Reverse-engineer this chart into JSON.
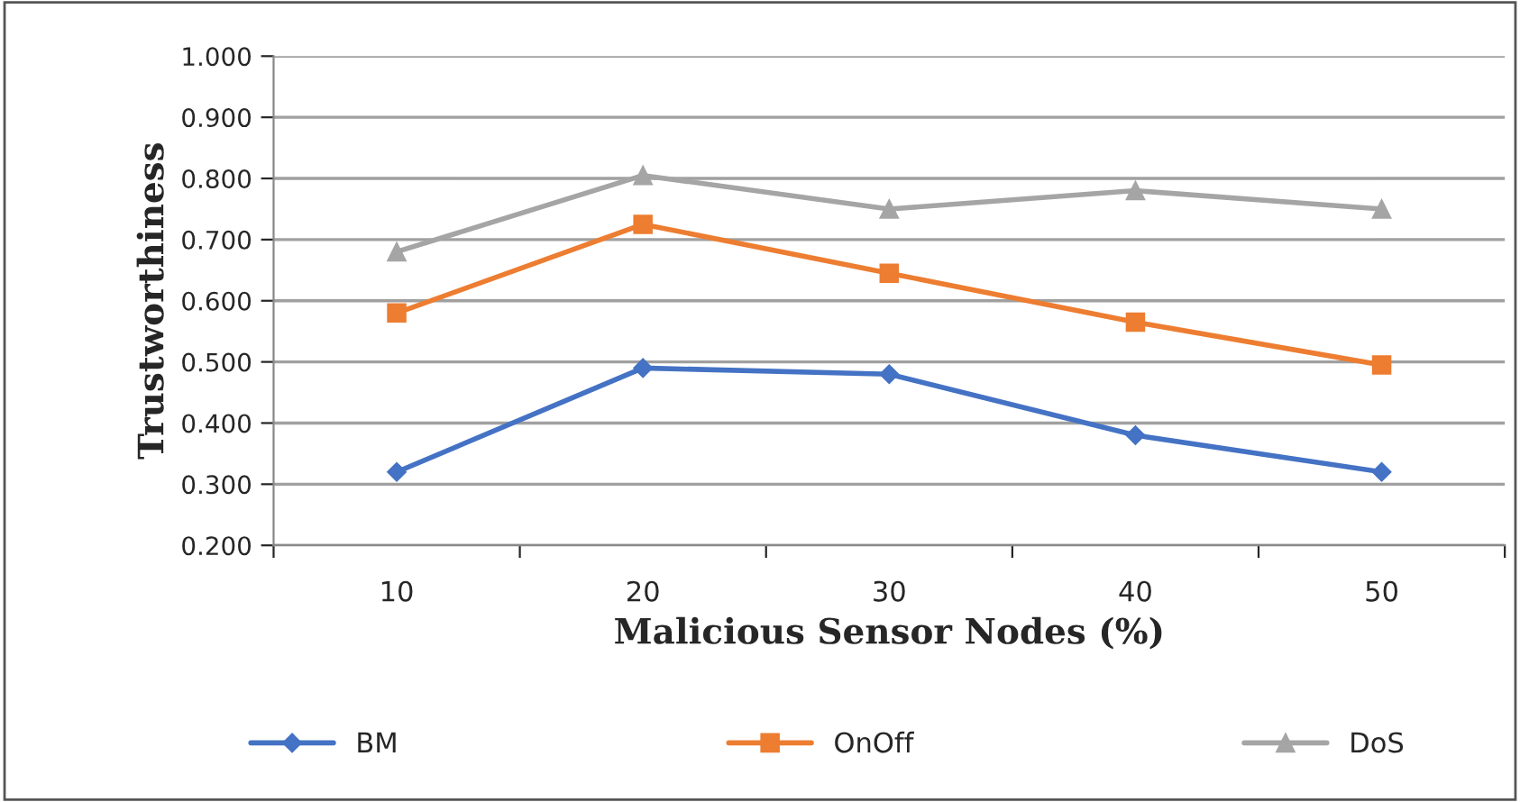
{
  "chart_data": {
    "type": "line",
    "xlabel": "Malicious Sensor Nodes (%)",
    "ylabel": "Trustworthiness",
    "categories": [
      "10",
      "20",
      "30",
      "40",
      "50"
    ],
    "series": [
      {
        "name": "BM",
        "color": "#4472c4",
        "marker": "diamond",
        "values": [
          0.32,
          0.49,
          0.48,
          0.38,
          0.32
        ]
      },
      {
        "name": "OnOff",
        "color": "#ed7d31",
        "marker": "square",
        "values": [
          0.58,
          0.725,
          0.645,
          0.565,
          0.495
        ]
      },
      {
        "name": "DoS",
        "color": "#a5a5a5",
        "marker": "triangle",
        "values": [
          0.68,
          0.805,
          0.75,
          0.78,
          0.75
        ]
      }
    ],
    "ylim": [
      0.2,
      1.0
    ],
    "yticks": [
      {
        "value": 0.2,
        "label": "0.200"
      },
      {
        "value": 0.3,
        "label": "0.300"
      },
      {
        "value": 0.4,
        "label": "0.400"
      },
      {
        "value": 0.5,
        "label": "0.500"
      },
      {
        "value": 0.6,
        "label": "0.600"
      },
      {
        "value": 0.7,
        "label": "0.700"
      },
      {
        "value": 0.8,
        "label": "0.800"
      },
      {
        "value": 0.9,
        "label": "0.900"
      },
      {
        "value": 1.0,
        "label": "1.000"
      }
    ],
    "grid": "y",
    "legend": "bottom",
    "line_style": "solid"
  }
}
